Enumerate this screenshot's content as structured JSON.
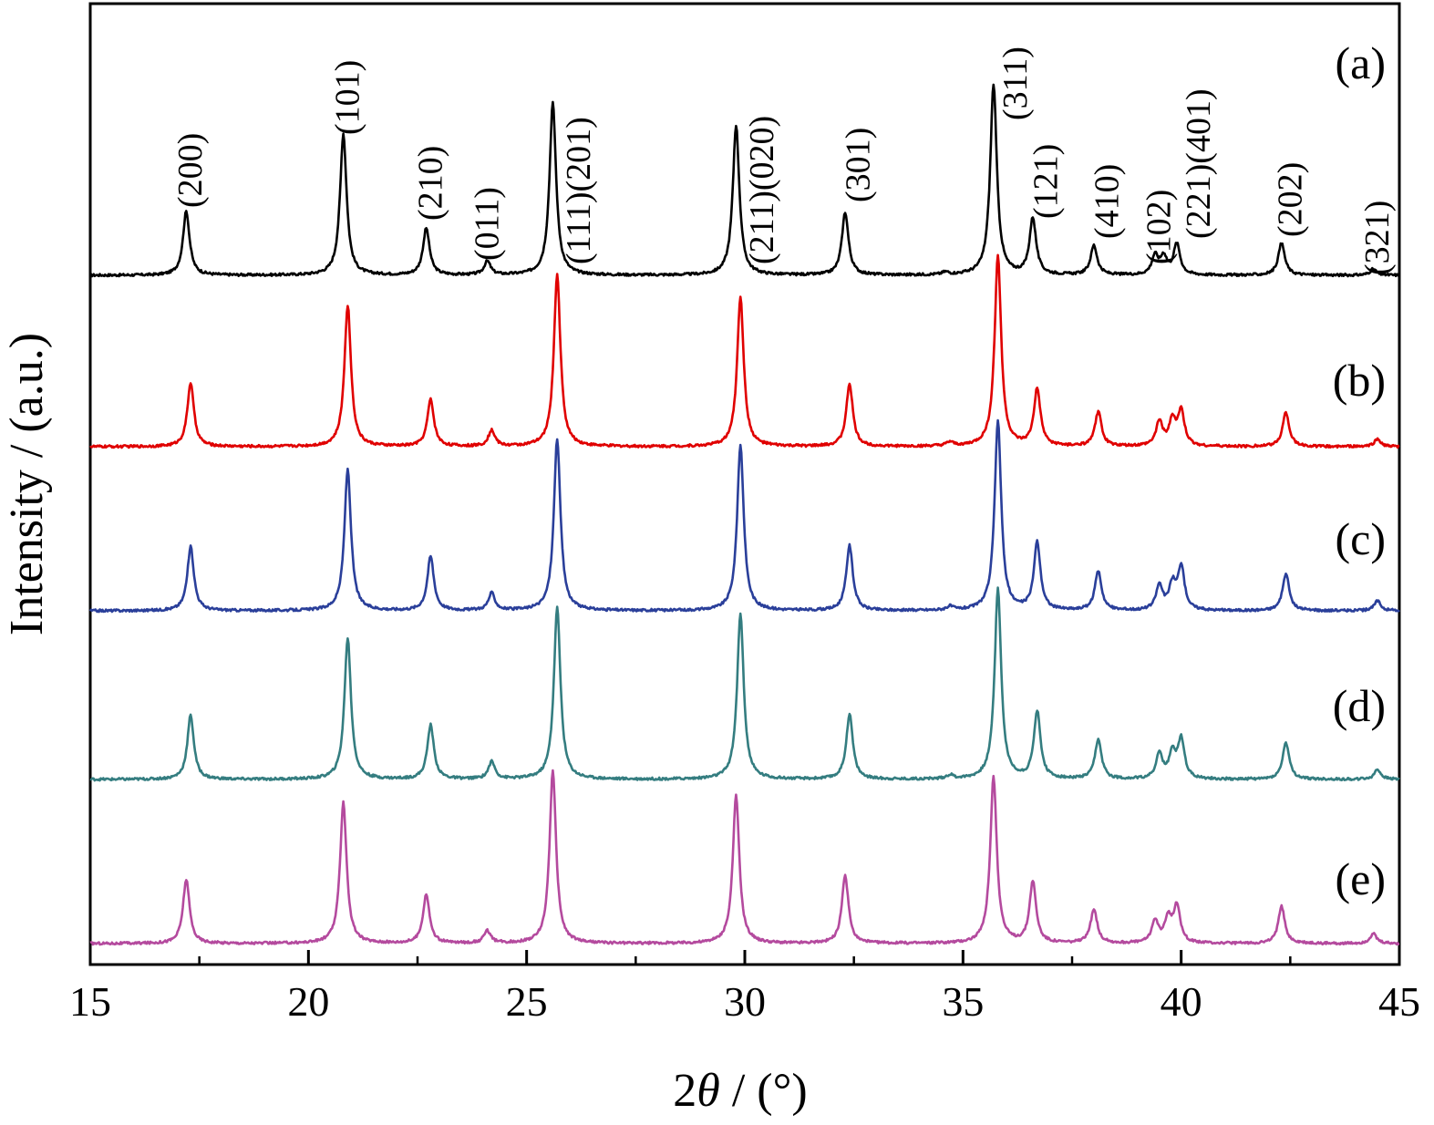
{
  "chart_data": {
    "type": "line",
    "xlabel_prefix": "2",
    "xlabel_theta": "θ",
    "xlabel_suffix": " / (°)",
    "ylabel": "Intensity / (a.u.)",
    "xlim": [
      15,
      45
    ],
    "x_ticks": [
      "15",
      "20",
      "25",
      "30",
      "35",
      "40",
      "45"
    ],
    "x_tick_values": [
      15,
      20,
      25,
      30,
      35,
      40,
      45
    ],
    "x_minor_ticks": [
      17.5,
      22.5,
      27.5,
      32.5,
      37.5,
      42.5
    ],
    "y_ticks": false,
    "grid": false,
    "peak_labels": [
      {
        "text": "(200)",
        "x": 17.3
      },
      {
        "text": "(101)",
        "x": 20.9
      },
      {
        "text": "(210)",
        "x": 22.8
      },
      {
        "text": "(011)",
        "x": 24.1
      },
      {
        "text": "(111)(201)",
        "x": 26.2
      },
      {
        "text": "(211)(020)",
        "x": 30.4
      },
      {
        "text": "(301)",
        "x": 32.6
      },
      {
        "text": "(311)",
        "x": 36.2
      },
      {
        "text": "(121)",
        "x": 36.9
      },
      {
        "text": "(410)",
        "x": 38.3
      },
      {
        "text": "(102)",
        "x": 39.5
      },
      {
        "text": "(221)(401)",
        "x": 40.4
      },
      {
        "text": "(202)",
        "x": 42.5
      },
      {
        "text": "(321)",
        "x": 44.5
      }
    ],
    "series": [
      {
        "name": "(a)",
        "color": "#000000",
        "baseline": 0.0,
        "peaks": [
          [
            17.2,
            0.52
          ],
          [
            20.8,
            1.15
          ],
          [
            22.7,
            0.38
          ],
          [
            24.1,
            0.11
          ],
          [
            25.6,
            1.4
          ],
          [
            29.8,
            1.22
          ],
          [
            32.3,
            0.51
          ],
          [
            34.6,
            0.02
          ],
          [
            35.7,
            1.55
          ],
          [
            36.6,
            0.46
          ],
          [
            38.0,
            0.24
          ],
          [
            39.4,
            0.15
          ],
          [
            39.6,
            0.14
          ],
          [
            39.9,
            0.25
          ],
          [
            42.3,
            0.26
          ],
          [
            44.4,
            0.05
          ]
        ]
      },
      {
        "name": "(b)",
        "color": "#e00000",
        "baseline": 0.0,
        "peaks": [
          [
            17.3,
            0.52
          ],
          [
            20.9,
            1.15
          ],
          [
            22.8,
            0.38
          ],
          [
            24.2,
            0.13
          ],
          [
            25.7,
            1.4
          ],
          [
            29.9,
            1.22
          ],
          [
            32.4,
            0.51
          ],
          [
            34.7,
            0.03
          ],
          [
            35.8,
            1.55
          ],
          [
            36.7,
            0.46
          ],
          [
            38.1,
            0.28
          ],
          [
            39.5,
            0.2
          ],
          [
            39.8,
            0.2
          ],
          [
            40.0,
            0.28
          ],
          [
            42.4,
            0.28
          ],
          [
            44.5,
            0.06
          ]
        ]
      },
      {
        "name": "(c)",
        "color": "#2a3f9a",
        "baseline": 0.0,
        "peaks": [
          [
            17.3,
            0.52
          ],
          [
            20.9,
            1.15
          ],
          [
            22.8,
            0.44
          ],
          [
            24.2,
            0.14
          ],
          [
            25.7,
            1.4
          ],
          [
            29.9,
            1.35
          ],
          [
            32.4,
            0.53
          ],
          [
            34.7,
            0.03
          ],
          [
            35.8,
            1.55
          ],
          [
            36.7,
            0.55
          ],
          [
            38.1,
            0.32
          ],
          [
            39.5,
            0.2
          ],
          [
            39.8,
            0.2
          ],
          [
            40.0,
            0.35
          ],
          [
            42.4,
            0.3
          ],
          [
            44.5,
            0.08
          ]
        ]
      },
      {
        "name": "(d)",
        "color": "#347d80",
        "baseline": 0.0,
        "peaks": [
          [
            17.3,
            0.52
          ],
          [
            20.9,
            1.15
          ],
          [
            22.8,
            0.44
          ],
          [
            24.2,
            0.14
          ],
          [
            25.7,
            1.4
          ],
          [
            29.9,
            1.35
          ],
          [
            32.4,
            0.53
          ],
          [
            34.7,
            0.03
          ],
          [
            35.8,
            1.55
          ],
          [
            36.7,
            0.55
          ],
          [
            38.1,
            0.32
          ],
          [
            39.5,
            0.2
          ],
          [
            39.8,
            0.2
          ],
          [
            40.0,
            0.32
          ],
          [
            42.4,
            0.3
          ],
          [
            44.5,
            0.08
          ]
        ]
      },
      {
        "name": "(e)",
        "color": "#b44a9e",
        "baseline": 0.0,
        "peaks": [
          [
            17.2,
            0.52
          ],
          [
            20.8,
            1.15
          ],
          [
            22.7,
            0.4
          ],
          [
            24.1,
            0.1
          ],
          [
            25.6,
            1.4
          ],
          [
            29.8,
            1.2
          ],
          [
            32.3,
            0.55
          ],
          [
            35.7,
            1.35
          ],
          [
            36.6,
            0.5
          ],
          [
            38.0,
            0.28
          ],
          [
            39.4,
            0.18
          ],
          [
            39.7,
            0.2
          ],
          [
            39.9,
            0.3
          ],
          [
            42.3,
            0.3
          ],
          [
            44.4,
            0.08
          ]
        ]
      }
    ]
  }
}
